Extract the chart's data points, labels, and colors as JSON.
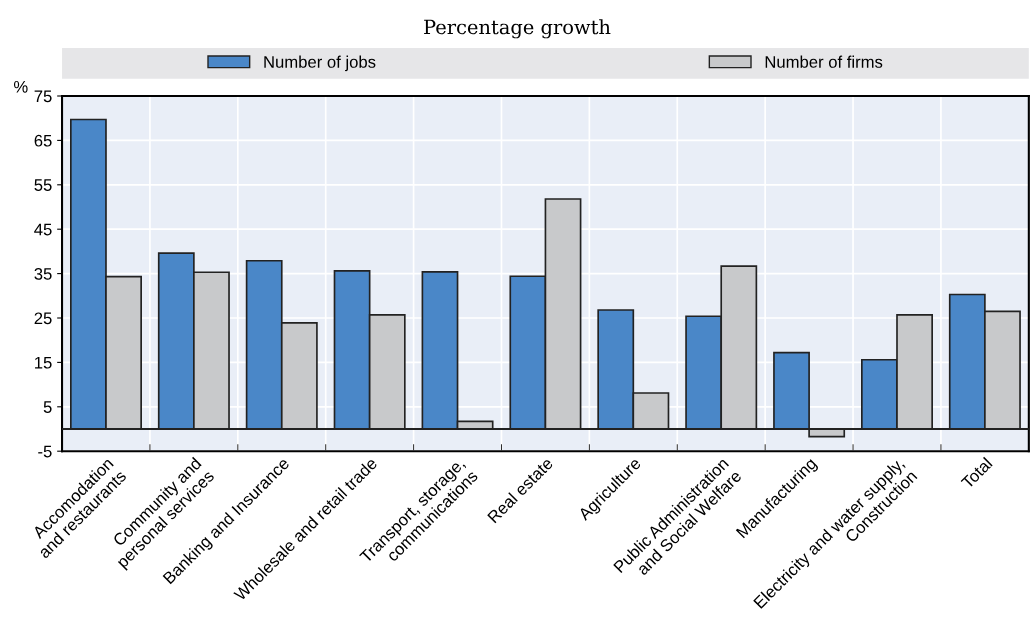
{
  "chart_data": {
    "type": "bar",
    "title": "Percentage growth",
    "ylabel": "%",
    "categories": [
      "Accomodation\nand restaurants",
      "Community and\npersonal services",
      "Banking and Insurance",
      "Wholesale and retail trade",
      "Transport, storage,\ncommunications",
      "Real estate",
      "Agriculture",
      "Public Administration\nand Social Welfare",
      "Manufacturing",
      "Electricity and water supply,\nConstruction",
      "Total"
    ],
    "series": [
      {
        "name": "Number of jobs",
        "color": "#4a87c8",
        "values": [
          69.7,
          39.6,
          37.9,
          35.6,
          35.4,
          34.4,
          26.8,
          25.4,
          17.2,
          15.6,
          30.3
        ]
      },
      {
        "name": "Number of firms",
        "color": "#c8c9cb",
        "values": [
          34.3,
          35.3,
          23.9,
          25.7,
          1.7,
          51.8,
          8.1,
          36.7,
          -1.7,
          25.7,
          26.5
        ]
      }
    ],
    "ylim": [
      -5,
      75
    ],
    "yticks": [
      -5,
      5,
      15,
      25,
      35,
      45,
      55,
      65,
      75
    ],
    "grid": true,
    "legend": "top"
  }
}
